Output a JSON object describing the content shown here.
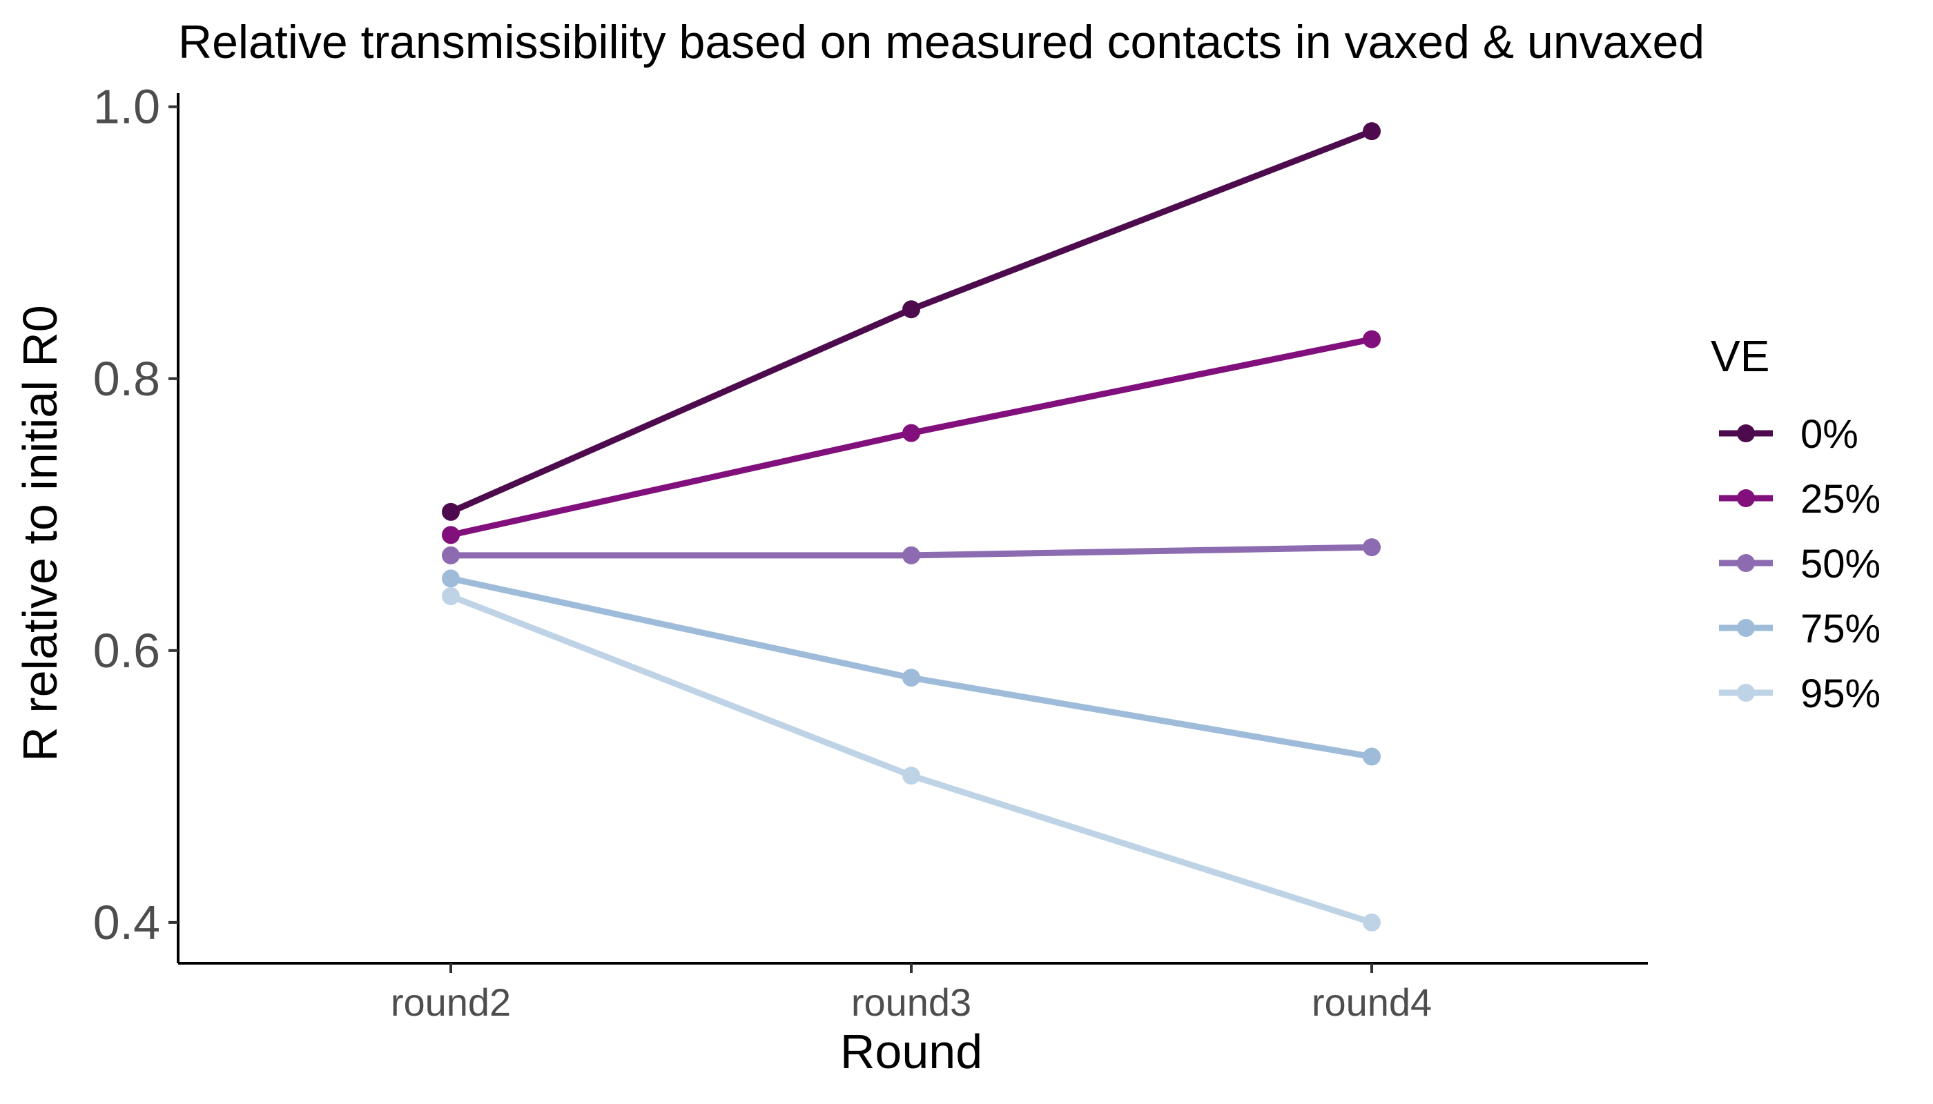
{
  "chart_data": {
    "type": "line",
    "title": "Relative transmissibility based on measured contacts in vaxed & unvaxed",
    "xlabel": "Round",
    "ylabel": "R relative to initial R0",
    "categories": [
      "round2",
      "round3",
      "round4"
    ],
    "ylim": [
      0.37,
      1.01
    ],
    "yticks": [
      0.4,
      0.6,
      0.8,
      1.0
    ],
    "ytick_labels": [
      "0.4",
      "0.6",
      "0.8",
      "1.0"
    ],
    "grid": false,
    "legend": {
      "title": "VE",
      "position": "right"
    },
    "series": [
      {
        "name": "0%",
        "color": "#4d0b4e",
        "values": [
          0.702,
          0.851,
          0.982
        ]
      },
      {
        "name": "25%",
        "color": "#810f7c",
        "values": [
          0.685,
          0.76,
          0.829
        ]
      },
      {
        "name": "50%",
        "color": "#8c6bb1",
        "values": [
          0.67,
          0.67,
          0.676
        ]
      },
      {
        "name": "75%",
        "color": "#9ebcda",
        "values": [
          0.653,
          0.58,
          0.522
        ]
      },
      {
        "name": "95%",
        "color": "#bfd3e6",
        "values": [
          0.64,
          0.508,
          0.4
        ]
      }
    ]
  }
}
